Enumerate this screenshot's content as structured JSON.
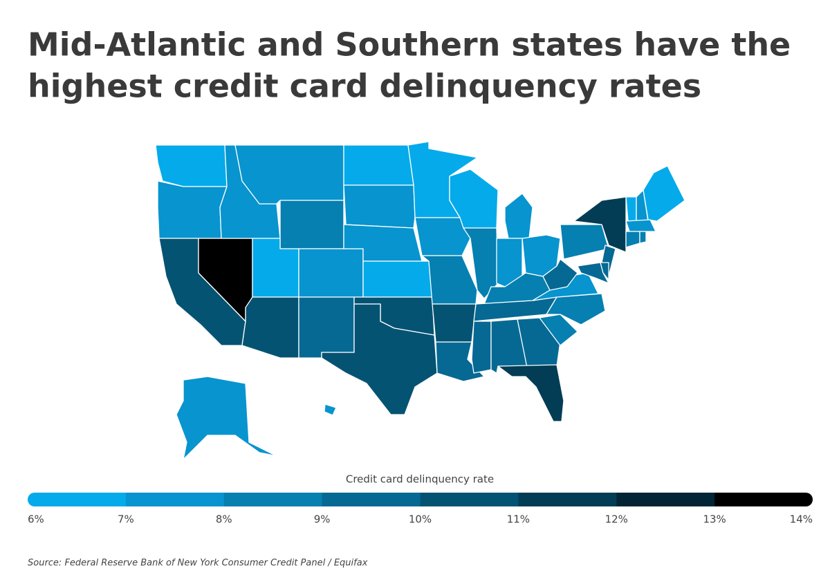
{
  "chart_data": {
    "type": "choropleth",
    "title": [
      "Mid-Atlantic and Southern states have the",
      "highest credit card delinquency rates"
    ],
    "values": [
      6.6,
      7.5,
      10.5,
      13.5,
      7.5,
      7.5,
      8.5,
      6.5,
      10.5,
      7.5,
      9.5,
      6.5,
      7.5,
      7.5,
      6.5,
      10.5,
      10.5,
      6.5,
      7.5,
      8.5,
      10.5,
      9.5,
      6.5,
      8.5,
      7.5,
      7.5,
      7.5,
      8.5,
      9.5,
      9.5,
      9.5,
      9.5,
      11.5,
      8.5,
      8.5,
      7.5,
      9.5,
      8.5,
      11.5,
      9.5,
      9.5,
      9.5,
      6.5,
      7.5,
      6.5,
      7.5,
      8.5,
      8.5,
      7.5,
      7.5
    ],
    "legend": {
      "title": "Credit card delinquency rate",
      "colors": [
        "#05aaea",
        "#0794cf",
        "#067fb1",
        "#066993",
        "#055373",
        "#033d55",
        "#022535",
        "#000000"
      ],
      "ticks": [
        {
          "value": 6,
          "label": "6%"
        },
        {
          "value": 7,
          "label": "7%"
        },
        {
          "value": 8,
          "label": "8%"
        },
        {
          "value": 9,
          "label": "9%"
        },
        {
          "value": 10,
          "label": "10%"
        },
        {
          "value": 11,
          "label": "11%"
        },
        {
          "value": 12,
          "label": "12%"
        },
        {
          "value": 13,
          "label": "13%"
        },
        {
          "value": 14,
          "label": "14%"
        }
      ]
    },
    "source": "Source:  Federal Reserve Bank of New York Consumer Credit Panel / Equifax"
  }
}
